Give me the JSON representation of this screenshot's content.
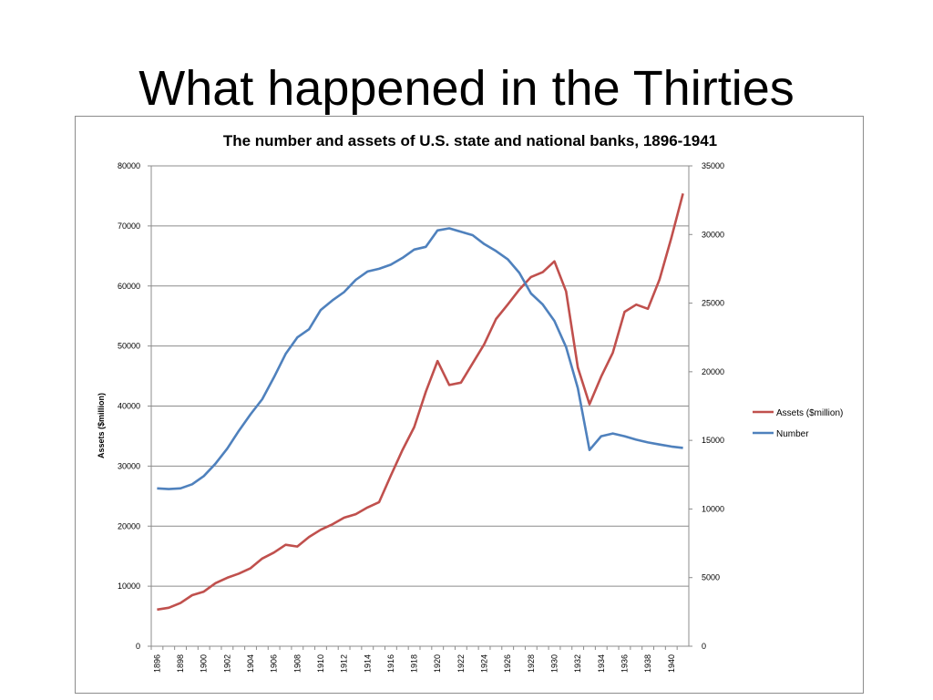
{
  "slide": {
    "title": "What happened in the Thirties"
  },
  "chart_data": {
    "type": "line",
    "title": "The number and assets of U.S. state and national banks, 1896-1941",
    "xlabel": "",
    "ylabel": "Assets ($million)",
    "y2label": "",
    "ylim": [
      0,
      80000
    ],
    "y2lim": [
      0,
      35000
    ],
    "yticks": [
      0,
      10000,
      20000,
      30000,
      40000,
      50000,
      60000,
      70000,
      80000
    ],
    "y2ticks": [
      0,
      5000,
      10000,
      15000,
      20000,
      25000,
      30000,
      35000
    ],
    "xticks": [
      "1896",
      "1898",
      "1900",
      "1902",
      "1904",
      "1906",
      "1908",
      "1910",
      "1912",
      "1914",
      "1916",
      "1918",
      "1920",
      "1922",
      "1924",
      "1926",
      "1928",
      "1930",
      "1932",
      "1934",
      "1936",
      "1938",
      "1940"
    ],
    "grid": "horizontal",
    "legend_position": "right",
    "x": [
      1896,
      1897,
      1898,
      1899,
      1900,
      1901,
      1902,
      1903,
      1904,
      1905,
      1906,
      1907,
      1908,
      1909,
      1910,
      1911,
      1912,
      1913,
      1914,
      1915,
      1916,
      1917,
      1918,
      1919,
      1920,
      1921,
      1922,
      1923,
      1924,
      1925,
      1926,
      1927,
      1928,
      1929,
      1930,
      1931,
      1932,
      1933,
      1934,
      1935,
      1936,
      1937,
      1938,
      1939,
      1940,
      1941
    ],
    "series": [
      {
        "name": "Assets ($million)",
        "axis": "left",
        "color": "#c0504d",
        "values": [
          6100,
          6400,
          7200,
          8500,
          9100,
          10500,
          11400,
          12100,
          13000,
          14600,
          15600,
          16900,
          16600,
          18200,
          19400,
          20300,
          21400,
          22000,
          23100,
          24000,
          28400,
          32700,
          36500,
          42400,
          47500,
          43500,
          43900,
          47100,
          50300,
          54500,
          56900,
          59400,
          61500,
          62300,
          64100,
          59100,
          46400,
          40300,
          44900,
          48900,
          55700,
          56900,
          56200,
          61100,
          68000,
          75400
        ]
      },
      {
        "name": "Number",
        "axis": "right",
        "color": "#4f81bd",
        "values": [
          11500,
          11450,
          11500,
          11800,
          12400,
          13300,
          14400,
          15700,
          16900,
          18000,
          19600,
          21300,
          22500,
          23100,
          24500,
          25200,
          25800,
          26700,
          27300,
          27500,
          27800,
          28300,
          28900,
          29100,
          30300,
          30450,
          30200,
          29950,
          29300,
          28800,
          28200,
          27200,
          25700,
          24900,
          23700,
          21800,
          18800,
          14300,
          15300,
          15500,
          15300,
          15050,
          14850,
          14700,
          14550,
          14450
        ]
      }
    ]
  }
}
